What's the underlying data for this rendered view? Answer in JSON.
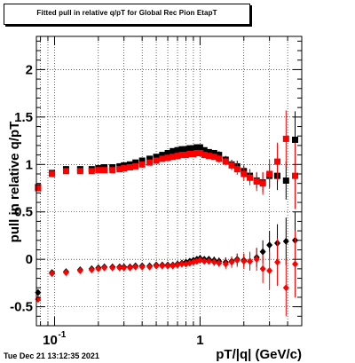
{
  "chart_data": {
    "type": "scatter",
    "title": "Fitted pull in relative q/pT for Global Rec Pion EtapT",
    "xlabel": "pT/|q| (GeV/c)",
    "ylabel": "pull in relative q/pT",
    "x_scale": "log",
    "xlim": [
      0.075,
      5.0
    ],
    "ylim": [
      -0.7,
      2.35
    ],
    "grid": true,
    "x_tick_labels": [
      "10",
      "1"
    ],
    "x_tick_label_superscripts": [
      "-1",
      ""
    ],
    "y_tick_labels": [
      "-0.5",
      "0",
      "0.5",
      "1",
      "1.5",
      "2"
    ],
    "y_ticks": [
      -0.5,
      0,
      0.5,
      1,
      1.5,
      2
    ],
    "series": [
      {
        "color": "#000000",
        "marker": "square",
        "role": "mean",
        "x": [
          0.077,
          0.096,
          0.12,
          0.15,
          0.18,
          0.2,
          0.22,
          0.25,
          0.28,
          0.3,
          0.33,
          0.36,
          0.4,
          0.45,
          0.5,
          0.55,
          0.6,
          0.65,
          0.7,
          0.75,
          0.8,
          0.85,
          0.9,
          0.95,
          1.0,
          1.07,
          1.15,
          1.25,
          1.35,
          1.5,
          1.65,
          1.8,
          2.0,
          2.2,
          2.45,
          2.7,
          3.0,
          3.4,
          3.9,
          4.5
        ],
        "y": [
          0.76,
          0.91,
          0.95,
          0.95,
          0.95,
          0.96,
          0.97,
          0.97,
          0.98,
          0.99,
          1.0,
          1.02,
          1.04,
          1.06,
          1.08,
          1.1,
          1.12,
          1.14,
          1.15,
          1.16,
          1.16,
          1.17,
          1.17,
          1.18,
          1.18,
          1.15,
          1.13,
          1.12,
          1.1,
          1.05,
          1.0,
          0.98,
          0.93,
          0.88,
          0.83,
          0.81,
          0.88,
          0.88,
          0.83,
          1.26
        ],
        "yerr": [
          0.03,
          0.02,
          0.02,
          0.02,
          0.02,
          0.02,
          0.02,
          0.02,
          0.02,
          0.02,
          0.02,
          0.02,
          0.02,
          0.02,
          0.02,
          0.02,
          0.02,
          0.02,
          0.02,
          0.02,
          0.02,
          0.02,
          0.02,
          0.03,
          0.03,
          0.03,
          0.03,
          0.03,
          0.04,
          0.04,
          0.05,
          0.06,
          0.06,
          0.07,
          0.08,
          0.1,
          0.12,
          0.15,
          0.2,
          0.3
        ]
      },
      {
        "color": "#ff0000",
        "marker": "square",
        "role": "mean",
        "x": [
          0.077,
          0.096,
          0.12,
          0.15,
          0.18,
          0.2,
          0.22,
          0.25,
          0.28,
          0.3,
          0.33,
          0.36,
          0.4,
          0.45,
          0.5,
          0.55,
          0.6,
          0.65,
          0.7,
          0.75,
          0.8,
          0.85,
          0.9,
          0.95,
          1.0,
          1.07,
          1.15,
          1.25,
          1.35,
          1.5,
          1.65,
          1.8,
          2.0,
          2.2,
          2.45,
          2.7,
          3.0,
          3.4,
          3.9,
          4.5
        ],
        "y": [
          0.75,
          0.9,
          0.93,
          0.93,
          0.93,
          0.94,
          0.94,
          0.94,
          0.95,
          0.96,
          0.97,
          0.98,
          1.0,
          1.02,
          1.04,
          1.06,
          1.07,
          1.08,
          1.09,
          1.1,
          1.1,
          1.11,
          1.11,
          1.12,
          1.12,
          1.1,
          1.09,
          1.08,
          1.06,
          1.03,
          0.99,
          0.95,
          0.9,
          0.86,
          0.82,
          0.8,
          0.9,
          1.03,
          1.27,
          0.88
        ],
        "yerr": [
          0.03,
          0.02,
          0.02,
          0.02,
          0.02,
          0.02,
          0.02,
          0.02,
          0.02,
          0.02,
          0.02,
          0.02,
          0.02,
          0.02,
          0.02,
          0.02,
          0.02,
          0.02,
          0.02,
          0.02,
          0.02,
          0.02,
          0.02,
          0.03,
          0.03,
          0.03,
          0.03,
          0.03,
          0.04,
          0.04,
          0.05,
          0.06,
          0.07,
          0.08,
          0.1,
          0.12,
          0.15,
          0.2,
          0.3,
          0.35
        ]
      },
      {
        "color": "#000000",
        "marker": "diamond",
        "role": "sigma",
        "x": [
          0.077,
          0.096,
          0.12,
          0.15,
          0.18,
          0.2,
          0.22,
          0.25,
          0.28,
          0.3,
          0.33,
          0.36,
          0.4,
          0.45,
          0.5,
          0.55,
          0.6,
          0.65,
          0.7,
          0.75,
          0.8,
          0.85,
          0.9,
          0.95,
          1.0,
          1.07,
          1.15,
          1.25,
          1.35,
          1.5,
          1.65,
          1.8,
          2.0,
          2.2,
          2.45,
          2.7,
          3.0,
          3.4,
          3.9,
          4.5
        ],
        "y": [
          -0.35,
          -0.14,
          -0.13,
          -0.11,
          -0.1,
          -0.09,
          -0.08,
          -0.08,
          -0.08,
          -0.08,
          -0.08,
          -0.07,
          -0.07,
          -0.07,
          -0.06,
          -0.06,
          -0.06,
          -0.06,
          -0.05,
          -0.04,
          -0.03,
          -0.02,
          -0.01,
          0.0,
          0.01,
          0.0,
          0.0,
          -0.01,
          -0.02,
          -0.03,
          -0.02,
          0.0,
          -0.01,
          -0.02,
          0.02,
          0.08,
          0.15,
          0.17,
          0.19,
          0.2
        ],
        "yerr": [
          0.03,
          0.02,
          0.02,
          0.02,
          0.02,
          0.02,
          0.02,
          0.02,
          0.02,
          0.02,
          0.02,
          0.02,
          0.02,
          0.02,
          0.02,
          0.02,
          0.02,
          0.02,
          0.02,
          0.02,
          0.02,
          0.02,
          0.02,
          0.03,
          0.03,
          0.03,
          0.03,
          0.04,
          0.04,
          0.05,
          0.05,
          0.06,
          0.07,
          0.08,
          0.1,
          0.12,
          0.15,
          0.2,
          0.25,
          0.3
        ]
      },
      {
        "color": "#ff0000",
        "marker": "diamond",
        "role": "sigma",
        "x": [
          0.077,
          0.096,
          0.12,
          0.15,
          0.18,
          0.2,
          0.22,
          0.25,
          0.28,
          0.3,
          0.33,
          0.36,
          0.4,
          0.45,
          0.5,
          0.55,
          0.6,
          0.65,
          0.7,
          0.75,
          0.8,
          0.85,
          0.9,
          0.95,
          1.0,
          1.07,
          1.15,
          1.25,
          1.35,
          1.5,
          1.65,
          1.8,
          2.0,
          2.2,
          2.45,
          2.7,
          3.0,
          3.4,
          3.9,
          4.5
        ],
        "y": [
          -0.42,
          -0.15,
          -0.14,
          -0.12,
          -0.11,
          -0.1,
          -0.09,
          -0.09,
          -0.09,
          -0.09,
          -0.09,
          -0.08,
          -0.08,
          -0.08,
          -0.07,
          -0.07,
          -0.07,
          -0.07,
          -0.06,
          -0.05,
          -0.05,
          -0.04,
          -0.03,
          -0.02,
          -0.01,
          -0.02,
          -0.02,
          -0.03,
          -0.04,
          -0.05,
          -0.03,
          -0.01,
          -0.02,
          -0.02,
          0.0,
          -0.1,
          -0.12,
          -0.03,
          -0.3,
          -0.05
        ],
        "yerr": [
          0.03,
          0.02,
          0.02,
          0.02,
          0.02,
          0.02,
          0.02,
          0.02,
          0.02,
          0.02,
          0.02,
          0.02,
          0.02,
          0.02,
          0.02,
          0.02,
          0.02,
          0.02,
          0.02,
          0.02,
          0.02,
          0.02,
          0.02,
          0.03,
          0.03,
          0.03,
          0.03,
          0.04,
          0.04,
          0.05,
          0.06,
          0.07,
          0.08,
          0.1,
          0.12,
          0.15,
          0.2,
          0.25,
          0.3,
          0.35
        ]
      }
    ]
  },
  "footer": {
    "timestamp": "Tue Dec 21 13:12:35 2021"
  }
}
